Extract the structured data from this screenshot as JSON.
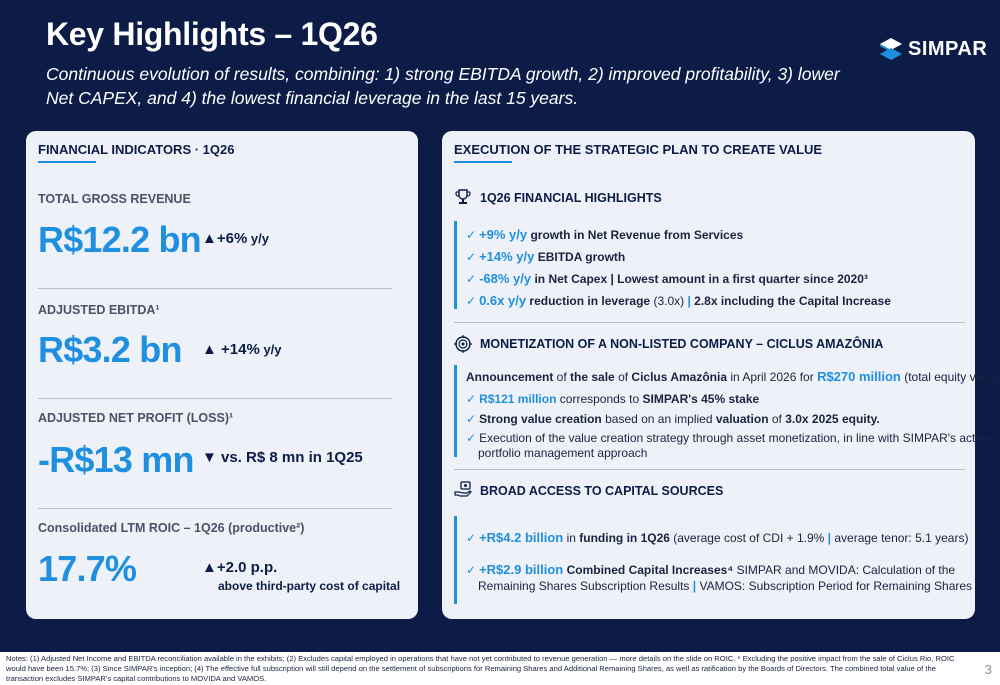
{
  "header": {
    "title": "Key Highlights – 1Q26",
    "subtitle": "Continuous evolution of results, combining: 1) strong EBITDA growth, 2) improved profitability, 3) lower Net CAPEX, and 4) the lowest financial leverage in the last 15 years.",
    "logo_text": "SIMPAR"
  },
  "left": {
    "heading": "FINANCIAL INDICATORS · 1Q26",
    "indicators": [
      {
        "label": "TOTAL GROSS REVENUE",
        "value": "R$12.2 bn",
        "arrow": "▲",
        "delta": "+6%",
        "delta_unit": " y/y"
      },
      {
        "label": "ADJUSTED EBITDA¹",
        "value": "R$3.2 bn",
        "arrow": "▲",
        "delta": "+14%",
        "delta_unit": " y/y"
      },
      {
        "label": "ADJUSTED NET PROFIT (LOSS)¹",
        "value": "-R$13 mn",
        "arrow": "▼",
        "delta": "vs.  R$ 8 mn in 1Q25",
        "delta_unit": ""
      },
      {
        "label": "Consolidated LTM ROIC – 1Q26 (productive²)",
        "value": "17.7%",
        "arrow": "▲",
        "delta": "+2.0 p.p.",
        "delta_unit": "",
        "note": "above third-party cost of capital"
      }
    ]
  },
  "right": {
    "heading": "EXECUTION OF THE STRATEGIC PLAN TO CREATE VALUE",
    "sections": [
      {
        "title": "1Q26 FINANCIAL HIGHLIGHTS",
        "icon": "trophy-icon",
        "items": [
          {
            "highlight": "+9% y/y",
            "text": " growth in Net Revenue from Services"
          },
          {
            "highlight": "+14% y/y",
            "text": " EBITDA growth"
          },
          {
            "highlight": "-68% y/y",
            "text": "  in Net Capex | Lowest amount in a first quarter since 2020³"
          },
          {
            "highlight": "0.6x y/y",
            "text": " reduction in leverage",
            "text2": " (3.0x) ",
            "sep": "|",
            "text3": "  2.8x including the Capital Increase"
          }
        ]
      },
      {
        "title": "MONETIZATION OF A NON-LISTED COMPANY – CICLUS AMAZÔNIA",
        "icon": "target-icon",
        "intro": {
          "a": "Announcement",
          "b": " of ",
          "c": "the sale",
          "d": " of ",
          "e": "Ciclus Amazônia",
          "f": " in April 2026 for ",
          "g": "R$270 million",
          "h": " (total equity value)"
        },
        "items": [
          {
            "highlight": "R$121 million",
            "text": " corresponds to ",
            "bold": "SIMPAR's 45% stake"
          },
          {
            "bold1": "Strong value creation",
            "text": " based on an implied ",
            "bold2": "valuation",
            "text2": " of ",
            "bold3": "3.0x 2025 equity."
          },
          {
            "text": "Execution of the value creation strategy through asset monetization, in line with SIMPAR's active",
            "text_line2": "portfolio management approach"
          }
        ]
      },
      {
        "title": "BROAD ACCESS TO CAPITAL SOURCES",
        "icon": "hand-coin-icon",
        "items": [
          {
            "highlight": "+R$4.2 billion",
            "text": "  in ",
            "bold": "funding in 1Q26",
            "text2": "  (average cost of CDI + 1.9% ",
            "sep": "|",
            "text3": " average tenor: 5.1 years)"
          },
          {
            "highlight": "+R$2.9 billion",
            "bold": " Combined Capital Increases⁴",
            "text": " SIMPAR and MOVIDA: Calculation of the",
            "line2a": "Remaining Shares Subscription Results ",
            "sep": "|",
            "line2b": " VAMOS: Subscription Period for Remaining Shares"
          }
        ]
      }
    ]
  },
  "footer": {
    "notes": "Notes: (1) Adjusted Net Income and EBITDA reconciliation available in the exhibits; (2) Excludes capital employed in operations that have not yet contributed to revenue generation — more details on the slide on ROIC. * Excluding the positive impact from the sale of Ciclus Rio, ROIC would have been 15.7%; (3) Since SIMPAR's inception; (4)  The effective full subscription will still depend on the settlement of subscriptions for Remaining Shares and Additional Remaining Shares, as well as ratification by the Boards of Directors. The combined total value of the transaction excludes SIMPAR's capital contributions to MOVIDA and VAMOS.",
    "page": "3"
  },
  "colors": {
    "navy": "#0c1c47",
    "accent": "#1f8fe0",
    "card": "#eef1f8"
  }
}
